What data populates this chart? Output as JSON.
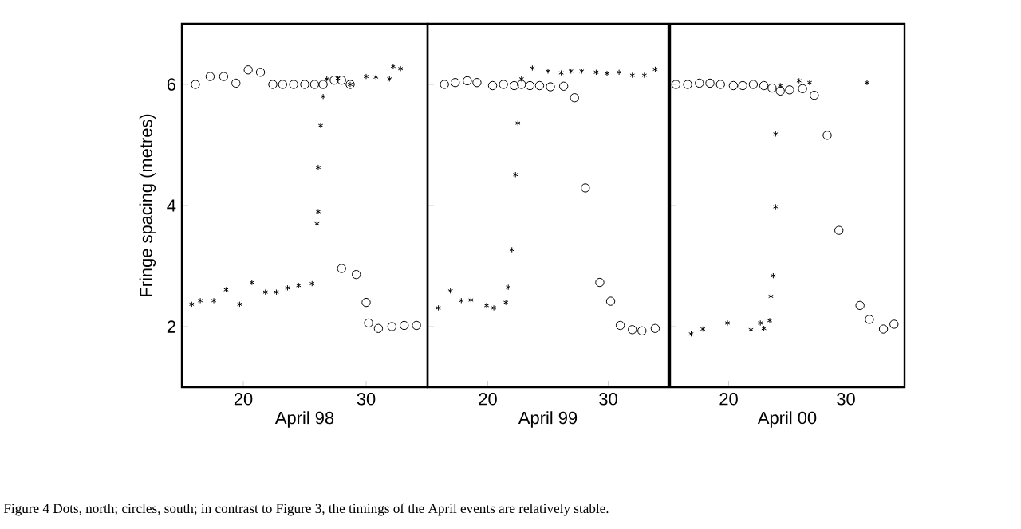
{
  "chart_data": [
    {
      "type": "scatter",
      "xlabel": "April 98",
      "ylabel": "Fringe spacing (metres)",
      "xlim": [
        15,
        35
      ],
      "ylim": [
        1,
        7
      ],
      "xticks": [
        20,
        30
      ],
      "yticks": [
        2,
        4,
        6
      ],
      "grid": false,
      "annotations": [
        "Figure 4    Dots, north; circles, south; in contrast to Figure 3, the timings of the April events are relatively stable."
      ],
      "series": [
        {
          "color": "#000000",
          "marker": "cross",
          "x": [
            15.8,
            16.5,
            17.6,
            18.6,
            19.7,
            20.7,
            21.8,
            22.7,
            23.6,
            24.5,
            25.6,
            26.0,
            26.1,
            26.1,
            26.3,
            26.5,
            26.8,
            27.7,
            28.7,
            30.0,
            30.8,
            31.9,
            32.2,
            32.8
          ],
          "values": [
            2.37,
            2.43,
            2.43,
            2.61,
            2.37,
            2.73,
            2.57,
            2.57,
            2.64,
            2.68,
            2.71,
            3.7,
            3.9,
            4.63,
            5.32,
            5.8,
            6.09,
            6.1,
            6.0,
            6.13,
            6.12,
            6.09,
            6.3,
            6.26
          ]
        },
        {
          "color": "#000000",
          "marker": "circle",
          "x": [
            16.1,
            17.3,
            18.4,
            19.4,
            20.4,
            21.4,
            22.4,
            23.2,
            24.1,
            25.0,
            25.8,
            26.5,
            27.4,
            28.0,
            28.7,
            28.0,
            29.2,
            30.0,
            30.2,
            31.0,
            32.1,
            33.1,
            34.1
          ],
          "values": [
            6.0,
            6.13,
            6.13,
            6.02,
            6.24,
            6.2,
            6.0,
            6.0,
            6.0,
            6.0,
            6.0,
            6.0,
            6.07,
            6.07,
            6.0,
            2.96,
            2.86,
            2.4,
            2.06,
            1.97,
            2.0,
            2.02,
            2.02
          ]
        }
      ]
    },
    {
      "type": "scatter",
      "xlabel": "April 99",
      "xlim": [
        15,
        35
      ],
      "ylim": [
        1,
        7
      ],
      "xticks": [
        20,
        30
      ],
      "yticks": [
        2,
        4,
        6
      ],
      "tick_labels": "x",
      "grid": false,
      "series": [
        {
          "color": "#000000",
          "marker": "cross",
          "x": [
            15.9,
            16.9,
            17.8,
            18.6,
            19.9,
            20.5,
            21.5,
            21.7,
            22.0,
            22.3,
            22.5,
            22.8,
            23.7,
            25.0,
            26.1,
            26.9,
            27.8,
            29.0,
            29.9,
            30.9,
            32.0,
            33.0,
            33.9
          ],
          "values": [
            2.31,
            2.59,
            2.43,
            2.44,
            2.35,
            2.31,
            2.4,
            2.65,
            3.27,
            4.51,
            5.36,
            6.09,
            6.27,
            6.22,
            6.19,
            6.22,
            6.22,
            6.2,
            6.18,
            6.2,
            6.15,
            6.15,
            6.25
          ]
        },
        {
          "color": "#000000",
          "marker": "circle",
          "x": [
            16.4,
            17.3,
            18.3,
            19.1,
            20.4,
            21.3,
            22.2,
            22.8,
            23.5,
            24.3,
            25.2,
            26.3,
            27.2,
            28.1,
            29.3,
            30.2,
            31.0,
            32.0,
            32.8,
            33.9
          ],
          "values": [
            6.0,
            6.03,
            6.06,
            6.03,
            5.98,
            6.0,
            5.98,
            6.0,
            5.98,
            5.98,
            5.96,
            5.97,
            5.78,
            4.29,
            2.73,
            2.42,
            2.02,
            1.95,
            1.93,
            1.97
          ]
        }
      ]
    },
    {
      "type": "scatter",
      "xlabel": "April 00",
      "xlim": [
        15,
        35
      ],
      "ylim": [
        1,
        7
      ],
      "xticks": [
        20,
        30
      ],
      "yticks": [
        2,
        4,
        6
      ],
      "tick_labels": "x",
      "grid": false,
      "series": [
        {
          "color": "#000000",
          "marker": "cross",
          "x": [
            16.8,
            17.8,
            19.9,
            21.9,
            22.7,
            23.0,
            23.5,
            23.6,
            23.8,
            24.0,
            24.0,
            24.4,
            26.0,
            26.9,
            31.8
          ],
          "values": [
            1.88,
            1.96,
            2.06,
            1.95,
            2.06,
            1.97,
            2.1,
            2.5,
            2.84,
            3.98,
            5.18,
            5.98,
            6.06,
            6.03,
            6.03
          ]
        },
        {
          "color": "#000000",
          "marker": "circle",
          "x": [
            15.5,
            16.5,
            17.5,
            18.4,
            19.3,
            20.4,
            21.2,
            22.1,
            23.0,
            23.7,
            24.4,
            25.2,
            26.3,
            27.3,
            28.4,
            29.4,
            31.2,
            32.0,
            33.2,
            34.1
          ],
          "values": [
            6.0,
            6.0,
            6.02,
            6.02,
            6.0,
            5.98,
            5.98,
            6.0,
            5.98,
            5.94,
            5.89,
            5.91,
            5.93,
            5.82,
            5.16,
            3.59,
            2.35,
            2.12,
            1.96,
            2.04
          ]
        }
      ]
    }
  ]
}
